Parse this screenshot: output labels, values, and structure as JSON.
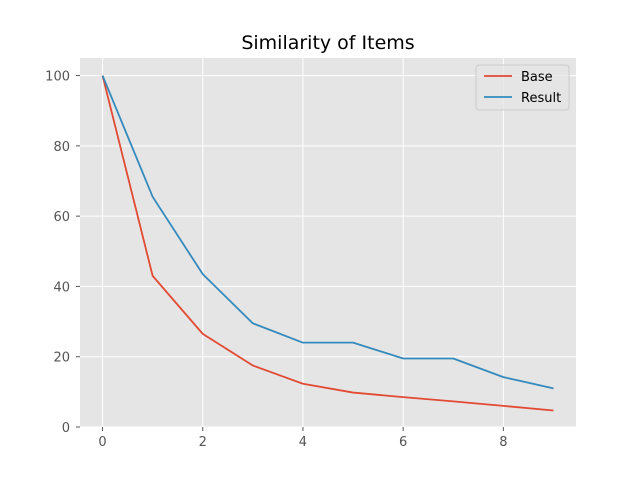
{
  "chart_data": {
    "type": "line",
    "title": "Similarity of Items",
    "xlabel": "",
    "ylabel": "",
    "x": [
      0,
      1,
      2,
      3,
      4,
      5,
      6,
      7,
      8,
      9
    ],
    "xlim": [
      -0.45,
      9.45
    ],
    "ylim": [
      0,
      105
    ],
    "xticks": [
      0,
      2,
      4,
      6,
      8
    ],
    "yticks": [
      0,
      20,
      40,
      60,
      80,
      100
    ],
    "grid": true,
    "legend_position": "top-right",
    "series": [
      {
        "name": "Base",
        "color": "#E24A33",
        "values": [
          100,
          43,
          26.5,
          17.5,
          12.3,
          9.8,
          8.5,
          7.3,
          6,
          4.7
        ]
      },
      {
        "name": "Result",
        "color": "#348ABD",
        "values": [
          100,
          65.5,
          43.5,
          29.5,
          24,
          24,
          19.5,
          19.5,
          14.2,
          11
        ]
      }
    ]
  }
}
